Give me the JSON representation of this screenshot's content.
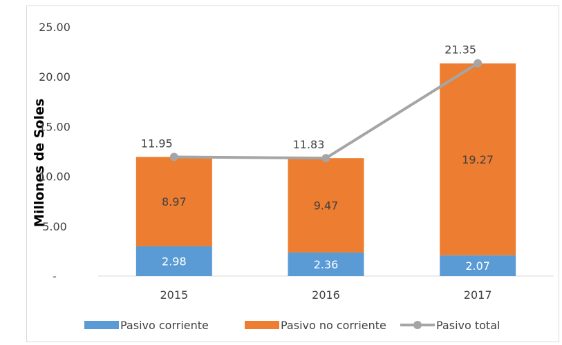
{
  "chart_data": {
    "type": "bar",
    "stacked": true,
    "title": "",
    "ylabel": "Millones de Soles",
    "xlabel": "",
    "categories": [
      "2015",
      "2016",
      "2017"
    ],
    "ylim": [
      0,
      25
    ],
    "yticks": [
      "-",
      "5.00",
      "10.00",
      "15.00",
      "20.00",
      "25.00"
    ],
    "series": [
      {
        "name": "Pasivo corriente",
        "kind": "bar",
        "color": "#5b9bd5",
        "values": [
          2.98,
          2.36,
          2.07
        ],
        "labels": [
          "2.98",
          "2.36",
          "2.07"
        ]
      },
      {
        "name": "Pasivo no corriente",
        "kind": "bar",
        "color": "#ed7d31",
        "values": [
          8.97,
          9.47,
          19.27
        ],
        "labels": [
          "8.97",
          "9.47",
          "19.27"
        ]
      },
      {
        "name": "Pasivo total",
        "kind": "line",
        "color": "#a5a5a5",
        "values": [
          11.95,
          11.83,
          21.35
        ],
        "labels": [
          "11.95",
          "11.83",
          "21.35"
        ]
      }
    ],
    "grid": false,
    "legend_position": "bottom"
  }
}
